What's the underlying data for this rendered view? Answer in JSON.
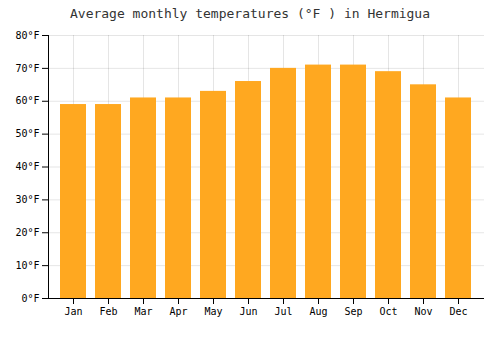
{
  "chart_data": {
    "type": "bar",
    "title": "Average monthly temperatures (°F ) in Hermigua",
    "categories": [
      "Jan",
      "Feb",
      "Mar",
      "Apr",
      "May",
      "Jun",
      "Jul",
      "Aug",
      "Sep",
      "Oct",
      "Nov",
      "Dec"
    ],
    "values": [
      59,
      59,
      61,
      61,
      63,
      66,
      70,
      71,
      71,
      69,
      65,
      61
    ],
    "color": "#FFA820",
    "ylim": [
      0,
      80
    ],
    "yticks": [
      {
        "value": 0,
        "label": "0°F"
      },
      {
        "value": 10,
        "label": "10°F"
      },
      {
        "value": 20,
        "label": "20°F"
      },
      {
        "value": 30,
        "label": "30°F"
      },
      {
        "value": 40,
        "label": "40°F"
      },
      {
        "value": 50,
        "label": "50°F"
      },
      {
        "value": 60,
        "label": "60°F"
      },
      {
        "value": 70,
        "label": "70°F"
      },
      {
        "value": 80,
        "label": "80°F"
      }
    ],
    "grid": true
  }
}
